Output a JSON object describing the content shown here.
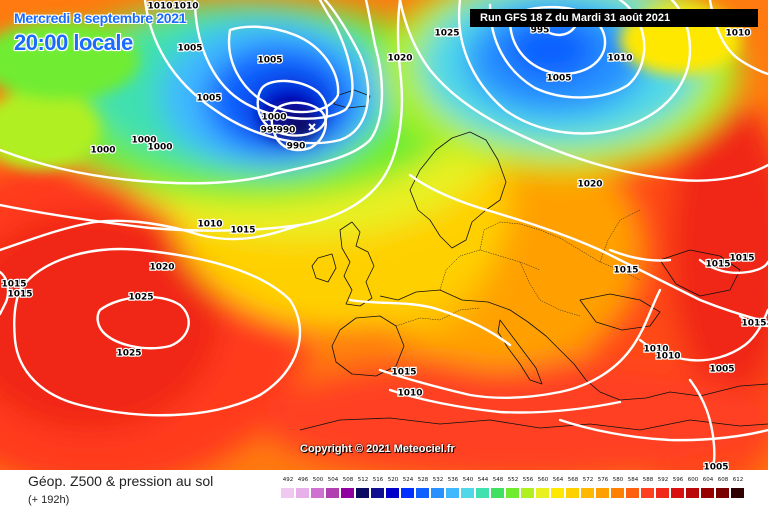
{
  "header": {
    "date": "Mercredi 8 septembre 2021",
    "time": "20:00 locale",
    "run": "Run GFS 18 Z du Mardi 31 août 2021"
  },
  "copyright": "Copyright © 2021 Meteociel.fr",
  "footer": {
    "title": "Géop. Z500 & pression au sol",
    "subtitle": "(+ 192h)"
  },
  "legend": {
    "values": [
      "492",
      "496",
      "500",
      "504",
      "508",
      "512",
      "516",
      "520",
      "524",
      "528",
      "532",
      "536",
      "540",
      "544",
      "548",
      "552",
      "556",
      "560",
      "564",
      "568",
      "572",
      "576",
      "580",
      "584",
      "588",
      "592",
      "596",
      "600",
      "604",
      "608",
      "612"
    ],
    "colors": [
      "#f0c8f0",
      "#e8b0e8",
      "#d070d0",
      "#b040b0",
      "#9000a0",
      "#0a0a60",
      "#101090",
      "#0000c8",
      "#0030ff",
      "#1060ff",
      "#2890ff",
      "#40b8ff",
      "#50d8e8",
      "#40e0b0",
      "#40e060",
      "#70ec30",
      "#b0f020",
      "#e8f020",
      "#ffe800",
      "#ffd000",
      "#ffb800",
      "#ffa000",
      "#ff8000",
      "#ff6010",
      "#ff4020",
      "#f02818",
      "#d81010",
      "#b80808",
      "#980000",
      "#780000",
      "#300000"
    ]
  },
  "isobar_labels": [
    {
      "text": "1010",
      "id": "1010-a"
    },
    {
      "text": "1010",
      "id": "1010-b"
    },
    {
      "text": "1005",
      "id": "1005-a"
    },
    {
      "text": "1005",
      "id": "1005-b"
    },
    {
      "text": "1005",
      "id": "1005-c"
    },
    {
      "text": "1000",
      "id": "1000-a"
    },
    {
      "text": "1000",
      "id": "1000-b"
    },
    {
      "text": "1000",
      "id": "1000-c"
    },
    {
      "text": "1000",
      "id": "1000-d"
    },
    {
      "text": "995",
      "id": "995-a"
    },
    {
      "text": "990",
      "id": "990-a"
    },
    {
      "text": "990",
      "id": "990-b"
    },
    {
      "text": "1020",
      "id": "1020-a"
    },
    {
      "text": "1025",
      "id": "1025-a"
    },
    {
      "text": "995",
      "id": "995-b"
    },
    {
      "text": "1005",
      "id": "1005-d"
    },
    {
      "text": "1010",
      "id": "1010-c"
    },
    {
      "text": "1010",
      "id": "1010-d"
    },
    {
      "text": "1020",
      "id": "1020-b"
    },
    {
      "text": "1010",
      "id": "1010-e"
    },
    {
      "text": "1015",
      "id": "1015-a"
    },
    {
      "text": "1020",
      "id": "1020-c"
    },
    {
      "text": "1025",
      "id": "1025-b"
    },
    {
      "text": "1025",
      "id": "1025-c"
    },
    {
      "text": "1015",
      "id": "1015-b"
    },
    {
      "text": "1015",
      "id": "1015-c"
    },
    {
      "text": "1015",
      "id": "1015-d"
    },
    {
      "text": "1015",
      "id": "1015-e"
    },
    {
      "text": "1015",
      "id": "1015-f"
    },
    {
      "text": "1015",
      "id": "1015-g"
    },
    {
      "text": "1015",
      "id": "1015-h"
    },
    {
      "text": "1010",
      "id": "1010-f"
    },
    {
      "text": "1010",
      "id": "1010-g"
    },
    {
      "text": "1005",
      "id": "1005-e"
    },
    {
      "text": "1005",
      "id": "1005-f"
    },
    {
      "text": "1010",
      "id": "1010-h"
    }
  ]
}
